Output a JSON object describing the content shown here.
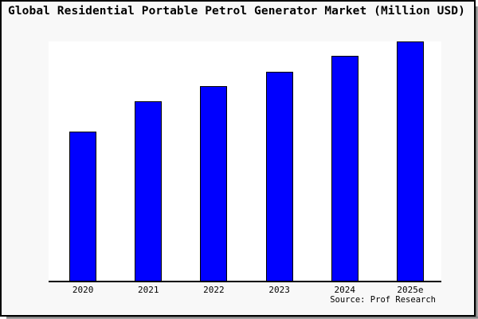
{
  "window": {
    "background_color": "#f8f8f8",
    "plot_background_color": "#ffffff",
    "frame_border_color": "#000000",
    "shadow_color": "#8a8a8a"
  },
  "chart": {
    "title": "Global Residential Portable Petrol Generator Market (Million USD)",
    "source": "Source: Prof Research",
    "bar_color": "#0000ff",
    "bar_border_color": "#000000",
    "axis_color": "#000000"
  },
  "chart_data": {
    "type": "bar",
    "title": "Global Residential Portable Petrol Generator Market (Million USD)",
    "categories": [
      "2020",
      "2021",
      "2022",
      "2023",
      "2024",
      "2025e"
    ],
    "values": [
      62.5,
      75,
      81.5,
      87.5,
      94,
      100
    ],
    "value_note": "y-axis has no tick labels; values are relative bar heights expressed as % of the 2025e bar",
    "unit": "Million USD",
    "xlabel": "",
    "ylabel": "",
    "ylim_relative": [
      0,
      100
    ],
    "grid": false,
    "legend": false,
    "y_axis_visible": false,
    "source": "Source: Prof Research"
  }
}
